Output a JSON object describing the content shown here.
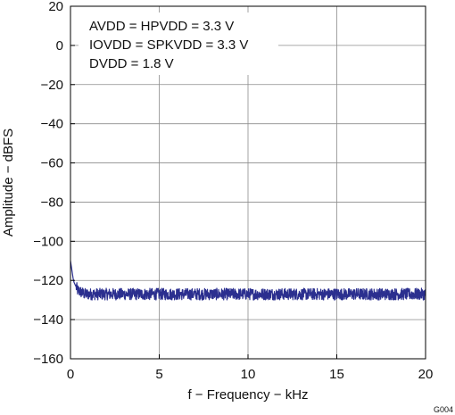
{
  "chart_data": {
    "type": "line",
    "title": "",
    "xlabel": "f − Frequency − kHz",
    "ylabel": "Amplitude − dBFS",
    "xlim": [
      0,
      20
    ],
    "ylim": [
      -160,
      20
    ],
    "x_ticks": [
      0,
      5,
      10,
      15,
      20
    ],
    "x_tick_labels": [
      "0",
      "5",
      "10",
      "15",
      "20"
    ],
    "y_ticks": [
      20,
      0,
      -20,
      -40,
      -60,
      -80,
      -100,
      -120,
      -140,
      -160
    ],
    "y_tick_labels": [
      "20",
      "0",
      "−20",
      "−40",
      "−60",
      "−80",
      "−100",
      "−120",
      "−140",
      "−160"
    ],
    "grid": true,
    "annotations": [
      "AVDD = HPVDD = 3.3 V",
      "IOVDD = SPKVDD = 3.3 V",
      "DVDD = 1.8 V"
    ],
    "figure_id": "G004",
    "series": [
      {
        "color": "#2b2f8f",
        "x": [
          0.0,
          0.05,
          0.1,
          0.15,
          0.2,
          0.3,
          0.4,
          0.6,
          0.8,
          1.0,
          2.0,
          3.0,
          4.0,
          5.0,
          6.0,
          7.0,
          8.0,
          9.0,
          10.0,
          11.0,
          12.0,
          13.0,
          14.0,
          15.0,
          16.0,
          17.0,
          18.0,
          19.0,
          20.0
        ],
        "values": [
          -110,
          -113,
          -116,
          -119,
          -121,
          -123,
          -125,
          -126,
          -127,
          -127,
          -127,
          -127,
          -127,
          -127,
          -127,
          -127,
          -127,
          -127,
          -127,
          -127,
          -127,
          -127,
          -127,
          -127,
          -127,
          -127,
          -127,
          -127,
          -127
        ],
        "noise_band_db": 3
      }
    ]
  }
}
